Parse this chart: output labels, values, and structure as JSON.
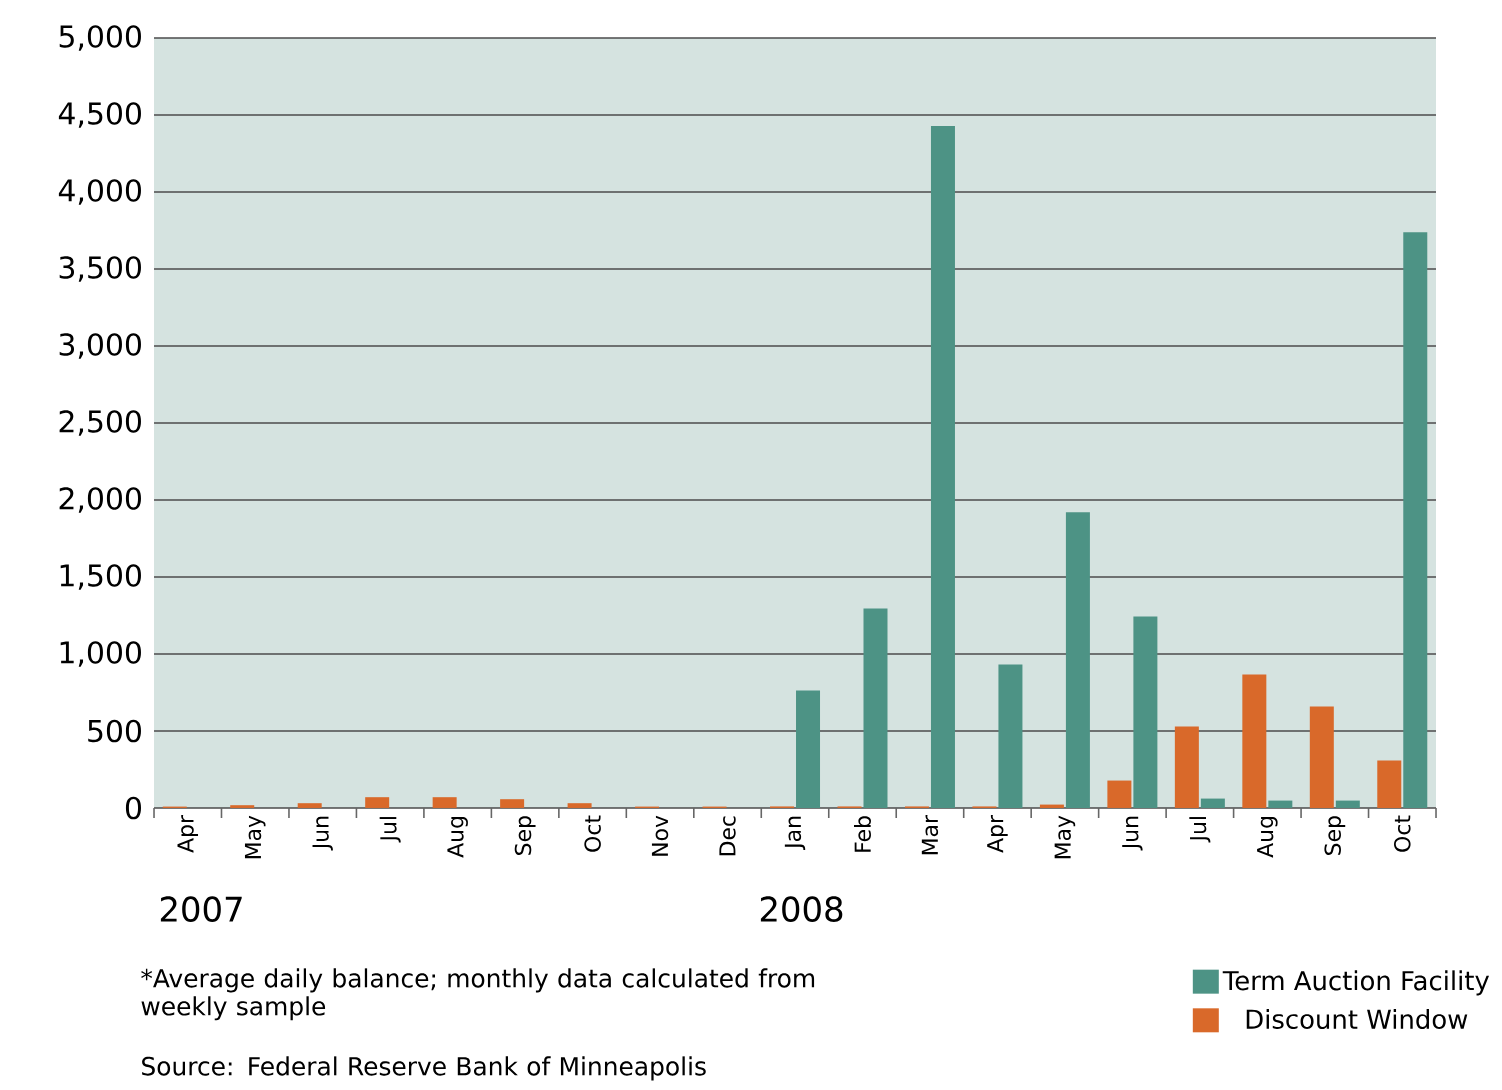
{
  "chart_data": {
    "type": "bar",
    "categories": [
      "Apr",
      "May",
      "Jun",
      "Jul",
      "Aug",
      "Sep",
      "Oct",
      "Nov",
      "Dec",
      "Jan",
      "Feb",
      "Mar",
      "Apr",
      "May",
      "Jun",
      "Jul",
      "Aug",
      "Sep",
      "Oct"
    ],
    "series": [
      {
        "name": "Discount Window",
        "color": "#d9692a",
        "values": [
          9,
          18,
          31,
          70,
          70,
          57,
          31,
          9,
          9,
          10,
          10,
          10,
          10,
          22,
          178,
          529,
          867,
          659,
          308
        ]
      },
      {
        "name": "Term Auction Facility",
        "color": "#4d9385",
        "values": [
          0,
          0,
          0,
          0,
          0,
          0,
          0,
          0,
          0,
          763,
          1296,
          4428,
          932,
          1920,
          1244,
          61,
          48,
          48,
          3739
        ]
      }
    ],
    "ylim": [
      0,
      5000
    ],
    "yticks": [
      0,
      500,
      {
        "value": 1000,
        "label": "1,000"
      },
      {
        "value": 1500,
        "label": "1,500"
      },
      {
        "value": 2000,
        "label": "2,000"
      },
      {
        "value": 2500,
        "label": "2,500"
      },
      {
        "value": 3000,
        "label": "3,000"
      },
      {
        "value": 3500,
        "label": "3,500"
      },
      {
        "value": 4000,
        "label": "4,000"
      },
      {
        "value": 4500,
        "label": "4,500"
      },
      {
        "value": 5000,
        "label": "5,000"
      }
    ],
    "grid": "y",
    "legend": "bottom right",
    "annotations": [
      "2007",
      "2008",
      "*Average daily balance; monthly data calculated from weekly sample",
      "Source: Federal Reserve Bank of Minneapolis"
    ]
  }
}
